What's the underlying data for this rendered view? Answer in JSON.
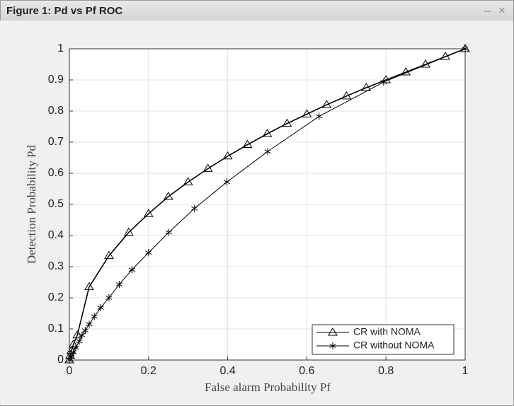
{
  "window": {
    "title": "Figure 1: Pd vs Pf ROC"
  },
  "chart_data": {
    "type": "line",
    "xlabel": "False alarm Probability Pf",
    "ylabel": "Detection Probability Pd",
    "xlim": [
      0,
      1
    ],
    "ylim": [
      0,
      1
    ],
    "xticks": [
      0,
      0.2,
      0.4,
      0.6,
      0.8,
      1
    ],
    "yticks": [
      0,
      0.1,
      0.2,
      0.3,
      0.4,
      0.5,
      0.6,
      0.7,
      0.8,
      0.9,
      1
    ],
    "grid": true,
    "legend_position": "lower right",
    "series": [
      {
        "name": "CR with NOMA",
        "color": "#000000",
        "marker": "triangle",
        "x": [
          0,
          0.002,
          0.005,
          0.01,
          0.02,
          0.05,
          0.1,
          0.15,
          0.2,
          0.25,
          0.3,
          0.35,
          0.4,
          0.45,
          0.5,
          0.55,
          0.6,
          0.65,
          0.7,
          0.75,
          0.8,
          0.85,
          0.9,
          0.95,
          1
        ],
        "values": [
          0,
          0.015,
          0.03,
          0.05,
          0.08,
          0.235,
          0.335,
          0.41,
          0.47,
          0.525,
          0.572,
          0.615,
          0.655,
          0.692,
          0.727,
          0.76,
          0.79,
          0.82,
          0.848,
          0.875,
          0.9,
          0.925,
          0.95,
          0.975,
          1
        ]
      },
      {
        "name": "CR without NOMA",
        "color": "#000000",
        "marker": "star",
        "x": [
          0,
          0.005,
          0.01,
          0.016,
          0.025,
          0.032,
          0.04,
          0.05,
          0.063,
          0.079,
          0.1,
          0.126,
          0.158,
          0.2,
          0.251,
          0.316,
          0.398,
          0.501,
          0.631,
          0.794,
          1
        ],
        "values": [
          0,
          0.01,
          0.025,
          0.04,
          0.06,
          0.08,
          0.095,
          0.115,
          0.14,
          0.168,
          0.2,
          0.243,
          0.29,
          0.345,
          0.41,
          0.487,
          0.572,
          0.67,
          0.783,
          0.893,
          1
        ]
      }
    ]
  }
}
